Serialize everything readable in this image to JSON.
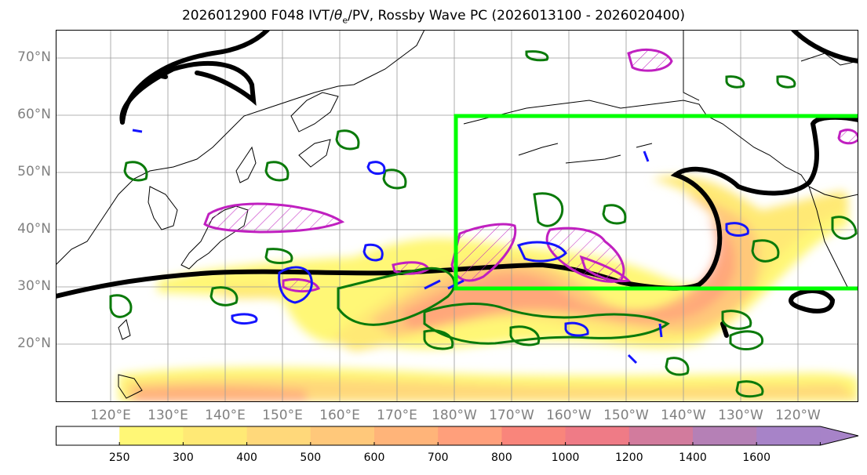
{
  "title": {
    "prefix": "2026012900 F048 IVT/",
    "theta": "θ",
    "sub": "e",
    "suffix": "/PV, Rossby Wave PC (2026013100 - 2026020400)"
  },
  "lat_labels": [
    "70°N",
    "60°N",
    "50°N",
    "40°N",
    "30°N",
    "20°N"
  ],
  "lon_labels": [
    "120°E",
    "130°E",
    "140°E",
    "150°E",
    "160°E",
    "170°E",
    "180°W",
    "170°W",
    "160°W",
    "150°W",
    "140°W",
    "130°W",
    "120°W"
  ],
  "colorbar": {
    "levels": [
      "250",
      "300",
      "400",
      "500",
      "600",
      "700",
      "800",
      "1000",
      "1200",
      "1400",
      "1600"
    ],
    "colors": [
      "#ffffff",
      "#fff776",
      "#ffe975",
      "#ffd87a",
      "#ffc87a",
      "#ffb479",
      "#ff9f7b",
      "#f9857b",
      "#ef7b86",
      "#d27b9d",
      "#b580b6",
      "#a783c8"
    ]
  },
  "colors": {
    "highlight_box": "#00ff00",
    "contour_black": "#000000",
    "contour_magenta": "#c020c0",
    "contour_green": "#0a7a0a",
    "contour_blue": "#1414ff"
  }
}
